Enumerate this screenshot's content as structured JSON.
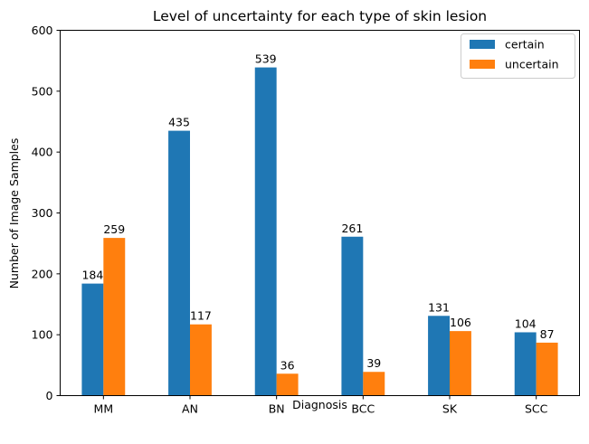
{
  "chart_data": {
    "type": "bar",
    "title": "Level of uncertainty for each type of skin lesion",
    "xlabel": "Diagnosis",
    "ylabel": "Number of Image Samples",
    "categories": [
      "MM",
      "AN",
      "BN",
      "BCC",
      "SK",
      "SCC"
    ],
    "series": [
      {
        "name": "certain",
        "color": "#1f77b4",
        "values": [
          184,
          435,
          539,
          261,
          131,
          104
        ]
      },
      {
        "name": "uncertain",
        "color": "#ff7f0e",
        "values": [
          259,
          117,
          36,
          39,
          106,
          87
        ]
      }
    ],
    "ylim": [
      0,
      600
    ],
    "yticks": [
      0,
      100,
      200,
      300,
      400,
      500,
      600
    ],
    "grid": false,
    "legend_position": "top-right",
    "data_labels": true
  }
}
